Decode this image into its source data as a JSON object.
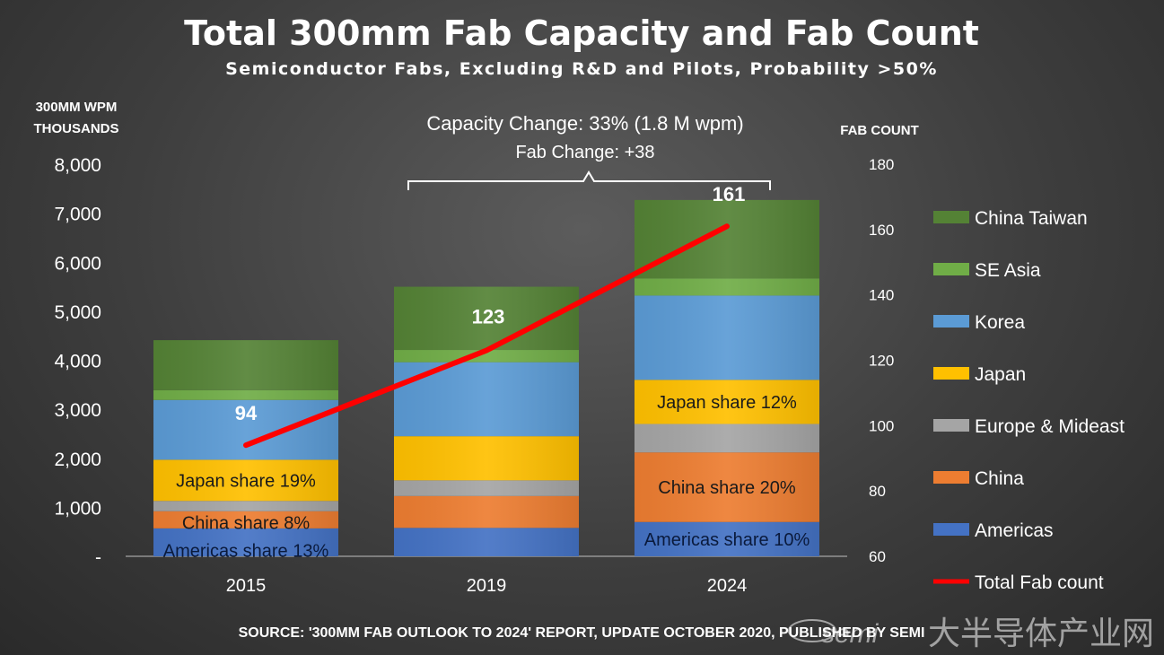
{
  "chart_data": {
    "type": "bar",
    "stacked": true,
    "title": "Total 300mm Fab Capacity and Fab Count",
    "subtitle": "Semiconductor Fabs, Excluding R&D and Pilots, Probability >50%",
    "ylabel": [
      "300MM WPM",
      "THOUSANDS"
    ],
    "y2label": "FAB COUNT",
    "categories": [
      "2015",
      "2019",
      "2024"
    ],
    "ylim": [
      0,
      8000
    ],
    "yticks": [
      0,
      1000,
      2000,
      3000,
      4000,
      5000,
      6000,
      7000,
      8000
    ],
    "yticklabels": [
      "-",
      "1,000",
      "2,000",
      "3,000",
      "4,000",
      "5,000",
      "6,000",
      "7,000",
      "8,000"
    ],
    "y2lim": [
      60,
      180
    ],
    "y2ticks": [
      60,
      80,
      100,
      120,
      140,
      160,
      180
    ],
    "series": [
      {
        "name": "Americas",
        "color": "#4472c4",
        "values": [
          570,
          580,
          700
        ]
      },
      {
        "name": "China",
        "color": "#ed7d31",
        "values": [
          350,
          650,
          1420
        ]
      },
      {
        "name": "Europe & Mideast",
        "color": "#a5a5a5",
        "values": [
          210,
          320,
          580
        ]
      },
      {
        "name": "Japan",
        "color": "#ffc000",
        "values": [
          840,
          900,
          900
        ]
      },
      {
        "name": "Korea",
        "color": "#5b9bd5",
        "values": [
          1220,
          1510,
          1720
        ]
      },
      {
        "name": "SE Asia",
        "color": "#70ad47",
        "values": [
          200,
          250,
          350
        ]
      },
      {
        "name": "China Taiwan",
        "color": "#548235",
        "values": [
          1020,
          1290,
          1600
        ]
      }
    ],
    "line_series": {
      "name": "Total Fab count",
      "color": "#ff0000",
      "values": [
        94,
        123,
        161
      ],
      "axis": "right"
    },
    "bar_annotations": [
      [
        "Americas share 13%",
        "China share 8%",
        "Japan share 19%"
      ],
      [],
      [
        "Americas share 10%",
        "China share 20%",
        "Japan share 12%"
      ]
    ],
    "annotation": {
      "line1": "Capacity Change: 33% (1.8 M wpm)",
      "line2": "Fab Change: +38"
    },
    "legend": [
      {
        "name": "China Taiwan",
        "color": "#548235"
      },
      {
        "name": "SE Asia",
        "color": "#70ad47"
      },
      {
        "name": "Korea",
        "color": "#5b9bd5"
      },
      {
        "name": "Japan",
        "color": "#ffc000"
      },
      {
        "name": "Europe & Mideast",
        "color": "#a5a5a5"
      },
      {
        "name": "China",
        "color": "#ed7d31"
      },
      {
        "name": "Americas",
        "color": "#4472c4"
      },
      {
        "name": "Total Fab count",
        "color": "#ff0000",
        "line": true
      }
    ],
    "legend_position": "right",
    "source": "SOURCE: '300MM FAB OUTLOOK TO 2024' REPORT, UPDATE OCTOBER 2020, PUBLISHED BY SEMI"
  },
  "watermark": {
    "text1": "semi",
    "text2": "大半导体产业网"
  }
}
